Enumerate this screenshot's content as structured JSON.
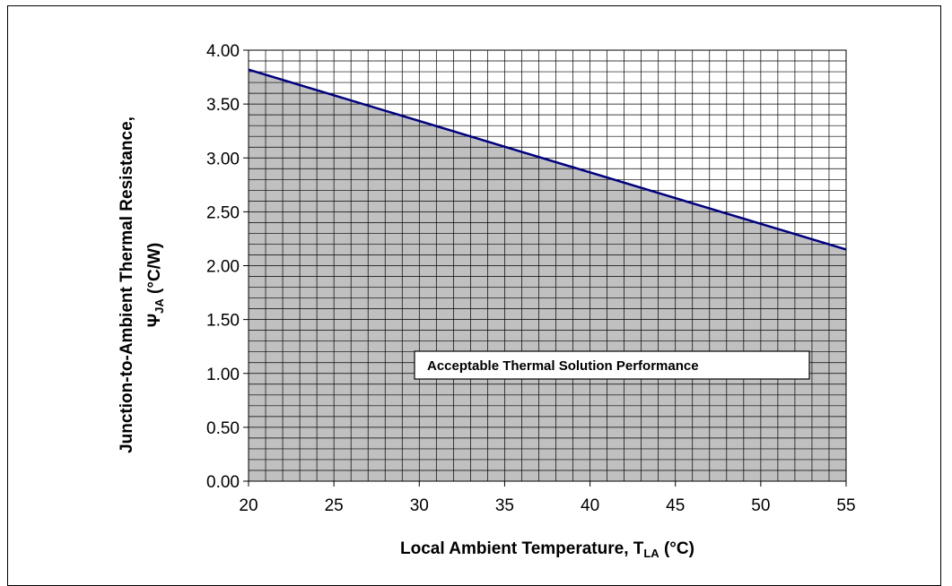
{
  "chart_data": {
    "type": "area",
    "title": "",
    "x": [
      20,
      55
    ],
    "series": [
      {
        "values": [
          3.82,
          2.15
        ]
      }
    ],
    "xlim": [
      20,
      55
    ],
    "ylim": [
      0,
      4
    ],
    "x_ticks": [
      "20",
      "25",
      "30",
      "35",
      "40",
      "45",
      "50",
      "55"
    ],
    "y_ticks": [
      "0.00",
      "0.50",
      "1.00",
      "1.50",
      "2.00",
      "2.50",
      "3.00",
      "3.50",
      "4.00"
    ],
    "xlabel": {
      "main": "Local Ambient Temperature, T",
      "sub": "LA",
      "unit": " (°C)"
    },
    "ylabel": {
      "line1": "Junction-to-Ambient Thermal Resistance,",
      "symbol": "Ψ",
      "sub": "JA",
      "unit": " (°C/W)"
    },
    "annotation": "Acceptable Thermal Solution Performance",
    "grid": true,
    "colors": {
      "area_fill": "#c0c0c0",
      "line": "#000080",
      "grid": "#000000"
    }
  }
}
